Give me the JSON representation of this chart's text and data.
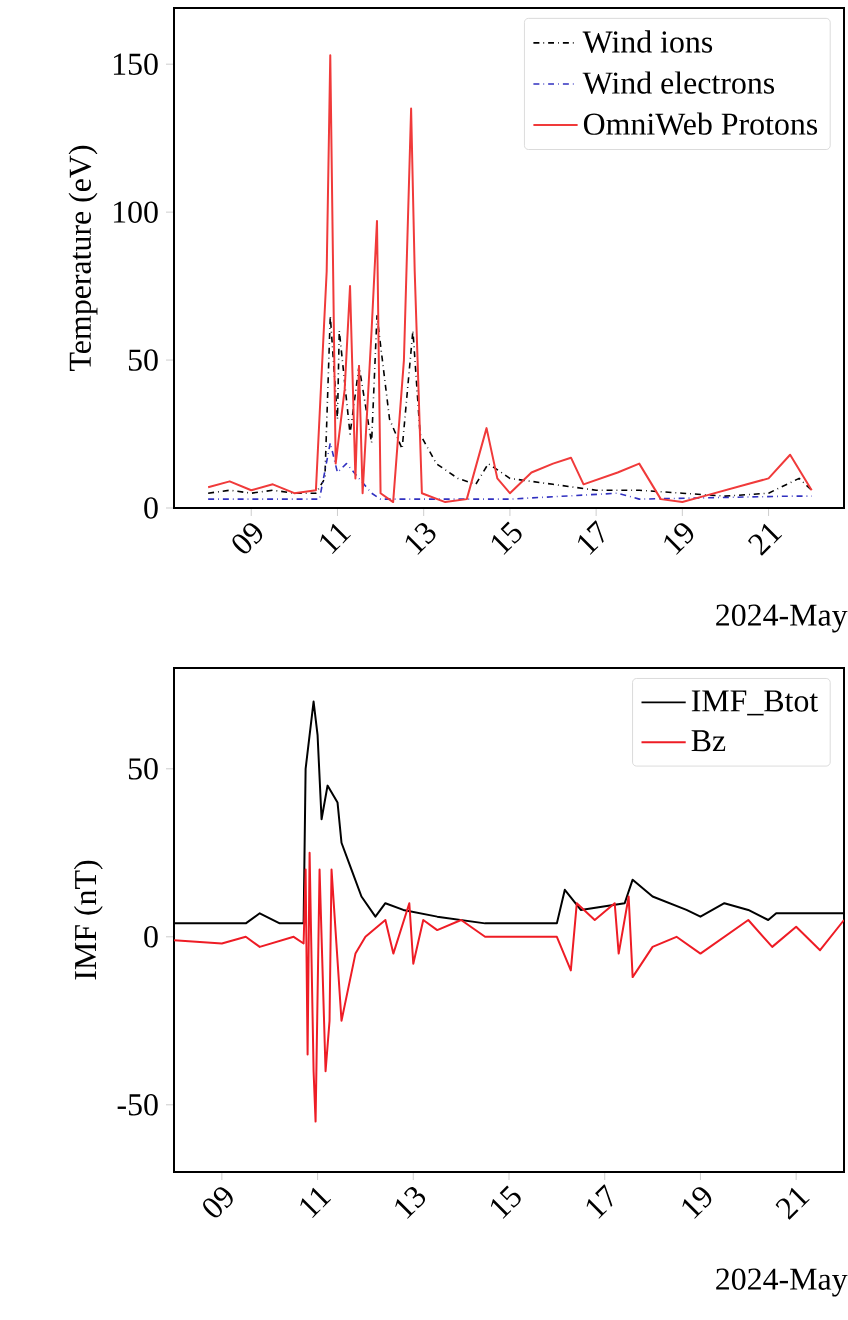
{
  "chart_data": [
    {
      "type": "line",
      "ylabel": "Temperature (eV)",
      "xlabel": "2024-May",
      "xlim": [
        "2024-05-07T05:00",
        "2024-05-22T18:00"
      ],
      "ylim": [
        0,
        169
      ],
      "xticks": [
        {
          "value": "2024-05-09",
          "label": "09"
        },
        {
          "value": "2024-05-11",
          "label": "11"
        },
        {
          "value": "2024-05-13",
          "label": "13"
        },
        {
          "value": "2024-05-15",
          "label": "15"
        },
        {
          "value": "2024-05-17",
          "label": "17"
        },
        {
          "value": "2024-05-19",
          "label": "19"
        },
        {
          "value": "2024-05-21",
          "label": "21"
        }
      ],
      "yticks": [
        0,
        50,
        100,
        150
      ],
      "legend": "top right",
      "grid": false,
      "series": [
        {
          "name": "Wind ions",
          "color": "#000000",
          "line_style": "dashdot",
          "x": [
            "2024-05-08T00:00",
            "2024-05-08T12:00",
            "2024-05-09T00:00",
            "2024-05-09T12:00",
            "2024-05-10T00:00",
            "2024-05-10T12:00",
            "2024-05-10T17:00",
            "2024-05-10T20:00",
            "2024-05-11T00:00",
            "2024-05-11T01:00",
            "2024-05-11T07:00",
            "2024-05-11T12:00",
            "2024-05-11T19:00",
            "2024-05-11T22:00",
            "2024-05-12T05:00",
            "2024-05-12T12:00",
            "2024-05-12T18:00",
            "2024-05-12T22:00",
            "2024-05-13T07:00",
            "2024-05-13T19:00",
            "2024-05-14T05:00",
            "2024-05-14T12:00",
            "2024-05-15T00:00",
            "2024-05-16T00:00",
            "2024-05-17T00:00",
            "2024-05-18T00:00",
            "2024-05-19T00:00",
            "2024-05-20T00:00",
            "2024-05-21T00:00",
            "2024-05-21T17:00",
            "2024-05-22T00:00"
          ],
          "values": [
            5,
            6,
            5,
            6,
            5,
            5,
            10,
            65,
            30,
            60,
            25,
            48,
            22,
            65,
            30,
            20,
            60,
            25,
            15,
            10,
            8,
            15,
            10,
            8,
            6,
            6,
            5,
            4,
            5,
            10,
            6
          ]
        },
        {
          "name": "Wind electrons",
          "color": "#3030c0",
          "line_style": "dashdot",
          "x": [
            "2024-05-08T00:00",
            "2024-05-10T14:00",
            "2024-05-10T20:00",
            "2024-05-11T00:00",
            "2024-05-11T05:00",
            "2024-05-11T12:00",
            "2024-05-11T19:00",
            "2024-05-12T00:00",
            "2024-05-15T00:00",
            "2024-05-17T12:00",
            "2024-05-18T00:00",
            "2024-05-21T12:00",
            "2024-05-22T00:00"
          ],
          "values": [
            3,
            3,
            22,
            12,
            15,
            10,
            5,
            3,
            3,
            5,
            3,
            4,
            4
          ]
        },
        {
          "name": "OmniWeb Protons",
          "color": "#f03a3a",
          "line_style": "solid",
          "x": [
            "2024-05-08T00:00",
            "2024-05-08T12:00",
            "2024-05-09T00:00",
            "2024-05-09T12:00",
            "2024-05-10T00:00",
            "2024-05-10T12:00",
            "2024-05-10T18:00",
            "2024-05-10T20:00",
            "2024-05-10T23:00",
            "2024-05-11T04:00",
            "2024-05-11T07:00",
            "2024-05-11T10:00",
            "2024-05-11T12:00",
            "2024-05-11T14:00",
            "2024-05-11T19:00",
            "2024-05-11T22:00",
            "2024-05-12T00:00",
            "2024-05-12T07:00",
            "2024-05-12T13:00",
            "2024-05-12T17:00",
            "2024-05-12T19:00",
            "2024-05-12T23:00",
            "2024-05-13T12:00",
            "2024-05-14T00:00",
            "2024-05-14T11:00",
            "2024-05-14T17:00",
            "2024-05-15T00:00",
            "2024-05-15T12:00",
            "2024-05-16T00:00",
            "2024-05-16T10:00",
            "2024-05-16T17:00",
            "2024-05-17T12:00",
            "2024-05-18T00:00",
            "2024-05-18T12:00",
            "2024-05-19T00:00",
            "2024-05-19T12:00",
            "2024-05-20T12:00",
            "2024-05-21T00:00",
            "2024-05-21T12:00",
            "2024-05-22T00:00"
          ],
          "values": [
            7,
            9,
            6,
            8,
            5,
            6,
            80,
            153,
            15,
            40,
            75,
            10,
            48,
            5,
            60,
            97,
            5,
            2,
            50,
            135,
            80,
            5,
            2,
            3,
            27,
            10,
            5,
            12,
            15,
            17,
            8,
            12,
            15,
            3,
            2,
            4,
            8,
            10,
            18,
            6
          ]
        }
      ]
    },
    {
      "type": "line",
      "ylabel": "IMF (nT)",
      "xlabel": "2024-May",
      "xlim": [
        "2024-05-08T00:00",
        "2024-05-22T00:00"
      ],
      "ylim": [
        -70,
        80
      ],
      "xticks": [
        {
          "value": "2024-05-09",
          "label": "09"
        },
        {
          "value": "2024-05-11",
          "label": "11"
        },
        {
          "value": "2024-05-13",
          "label": "13"
        },
        {
          "value": "2024-05-15",
          "label": "15"
        },
        {
          "value": "2024-05-17",
          "label": "17"
        },
        {
          "value": "2024-05-19",
          "label": "19"
        },
        {
          "value": "2024-05-21",
          "label": "21"
        }
      ],
      "yticks": [
        -50,
        0,
        50
      ],
      "legend": "top right",
      "grid": false,
      "series": [
        {
          "name": "IMF_Btot",
          "color": "#000000",
          "line_style": "solid",
          "x": [
            "2024-05-08T00:00",
            "2024-05-09T12:00",
            "2024-05-09T19:00",
            "2024-05-10T05:00",
            "2024-05-10T17:00",
            "2024-05-10T18:00",
            "2024-05-10T22:00",
            "2024-05-11T00:00",
            "2024-05-11T02:00",
            "2024-05-11T05:00",
            "2024-05-11T10:00",
            "2024-05-11T12:00",
            "2024-05-11T17:00",
            "2024-05-11T22:00",
            "2024-05-12T05:00",
            "2024-05-12T10:00",
            "2024-05-12T19:00",
            "2024-05-13T12:00",
            "2024-05-14T12:00",
            "2024-05-16T00:00",
            "2024-05-16T04:00",
            "2024-05-16T12:00",
            "2024-05-17T10:00",
            "2024-05-17T14:00",
            "2024-05-18T00:00",
            "2024-05-18T17:00",
            "2024-05-19T00:00",
            "2024-05-19T12:00",
            "2024-05-20T00:00",
            "2024-05-20T10:00",
            "2024-05-20T14:00",
            "2024-05-22T00:00"
          ],
          "values": [
            4,
            4,
            7,
            4,
            4,
            50,
            70,
            60,
            35,
            45,
            40,
            28,
            20,
            12,
            6,
            10,
            8,
            6,
            4,
            4,
            14,
            8,
            10,
            17,
            12,
            8,
            6,
            10,
            8,
            5,
            7,
            7
          ]
        },
        {
          "name": "Bz",
          "color": "#ee1c25",
          "line_style": "solid",
          "x": [
            "2024-05-08T00:00",
            "2024-05-09T00:00",
            "2024-05-09T12:00",
            "2024-05-09T19:00",
            "2024-05-10T12:00",
            "2024-05-10T17:00",
            "2024-05-10T18:00",
            "2024-05-10T19:00",
            "2024-05-10T20:00",
            "2024-05-10T22:00",
            "2024-05-10T23:00",
            "2024-05-11T01:00",
            "2024-05-11T04:00",
            "2024-05-11T06:00",
            "2024-05-11T07:00",
            "2024-05-11T12:00",
            "2024-05-11T19:00",
            "2024-05-12T00:00",
            "2024-05-12T10:00",
            "2024-05-12T14:00",
            "2024-05-12T22:00",
            "2024-05-13T00:00",
            "2024-05-13T05:00",
            "2024-05-13T12:00",
            "2024-05-14T00:00",
            "2024-05-14T12:00",
            "2024-05-16T00:00",
            "2024-05-16T07:00",
            "2024-05-16T10:00",
            "2024-05-16T19:00",
            "2024-05-17T05:00",
            "2024-05-17T07:00",
            "2024-05-17T12:00",
            "2024-05-17T14:00",
            "2024-05-18T00:00",
            "2024-05-18T12:00",
            "2024-05-19T00:00",
            "2024-05-19T12:00",
            "2024-05-20T00:00",
            "2024-05-20T12:00",
            "2024-05-21T00:00",
            "2024-05-21T12:00",
            "2024-05-22T00:00"
          ],
          "values": [
            -1,
            -2,
            0,
            -3,
            0,
            -2,
            20,
            -35,
            25,
            -40,
            -55,
            20,
            -40,
            -25,
            20,
            -25,
            -5,
            0,
            5,
            -5,
            10,
            -8,
            5,
            2,
            5,
            0,
            0,
            -10,
            10,
            5,
            10,
            -5,
            12,
            -12,
            -3,
            0,
            -5,
            0,
            5,
            -3,
            3,
            -4,
            5
          ]
        }
      ]
    }
  ]
}
